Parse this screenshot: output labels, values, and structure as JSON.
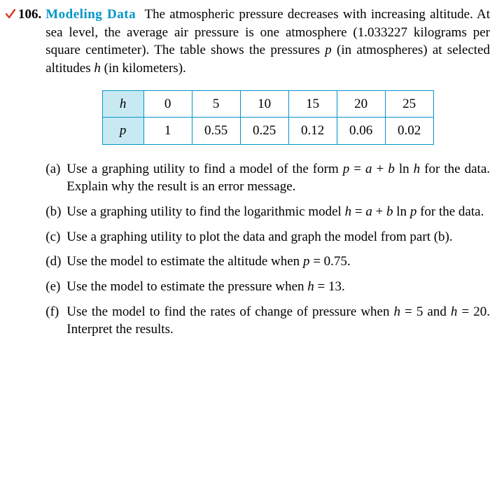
{
  "problem_number": "106.",
  "title": "Modeling Data",
  "intro_html": "The atmospheric pressure decreases with increasing altitude. At sea level, the average air pressure is one atmosphere (1.033227 kilograms per square centimeter). The table shows the pressures <span class=\"it\">p</span> (in atmospheres) at selected altitudes <span class=\"it\">h</span> (in kilometers).",
  "table": {
    "border_color": "#0096c8",
    "header_bg": "#c9e9f2",
    "rows": [
      {
        "label": "h",
        "cells": [
          "0",
          "5",
          "10",
          "15",
          "20",
          "25"
        ]
      },
      {
        "label": "p",
        "cells": [
          "1",
          "0.55",
          "0.25",
          "0.12",
          "0.06",
          "0.02"
        ]
      }
    ]
  },
  "parts": {
    "a": {
      "lab": "(a)",
      "html": "Use a graphing utility to find a model of the form <span class=\"it\">p</span> = <span class=\"it\">a</span> + <span class=\"it\">b</span> ln <span class=\"it\">h</span> for the data. Explain why the result is an error message."
    },
    "b": {
      "lab": "(b)",
      "html": "Use a graphing utility to find the logarithmic model <span class=\"it\">h</span> = <span class=\"it\">a</span> + <span class=\"it\">b</span> ln <span class=\"it\">p</span> for the data."
    },
    "c": {
      "lab": "(c)",
      "html": "Use a graphing utility to plot the data and graph the model from part (b)."
    },
    "d": {
      "lab": "(d)",
      "html": "Use the model to estimate the altitude when <span class=\"it\">p</span> = 0.75."
    },
    "e": {
      "lab": "(e)",
      "html": "Use the model to estimate the pressure when <span class=\"it\">h</span> = 13."
    },
    "f": {
      "lab": "(f)",
      "html": "Use the model to find the rates of change of pressure when <span class=\"it\">h</span> = 5 and <span class=\"it\">h</span> = 20. Interpret the results."
    }
  },
  "checkmark_color": "#d9381e"
}
